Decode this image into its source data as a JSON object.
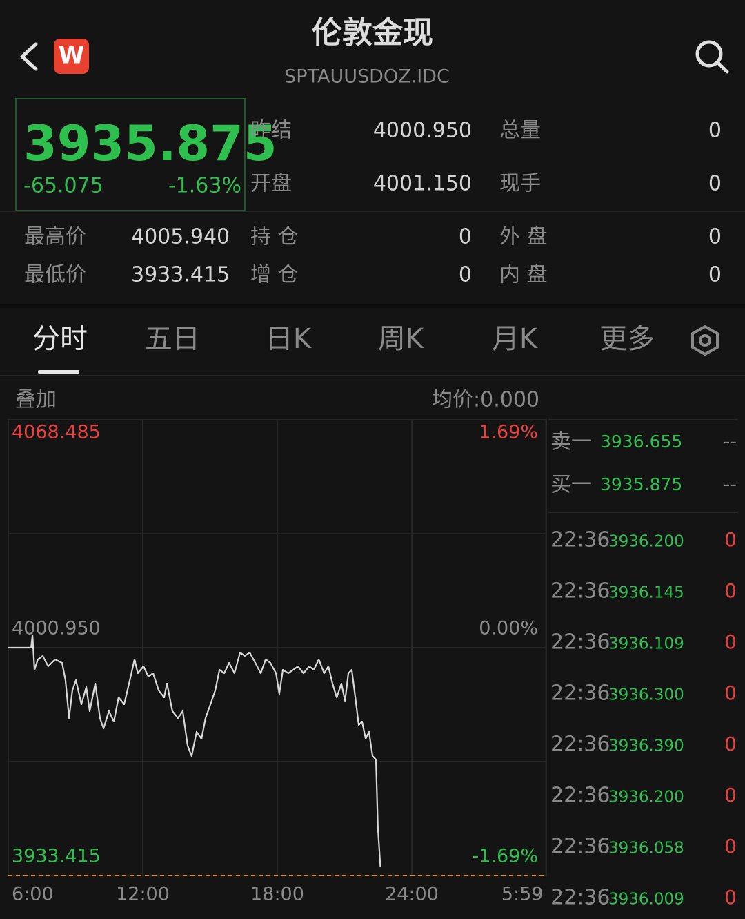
{
  "header": {
    "title": "伦敦金现",
    "subtitle": "SPTAUUSDOZ.IDC",
    "logo": "W"
  },
  "quote": {
    "price": "3935.875",
    "change": "-65.075",
    "change_pct": "-1.63%"
  },
  "stats": [
    {
      "label": "昨结",
      "value": "4000.950"
    },
    {
      "label": "总量",
      "value": "0"
    },
    {
      "label": "开盘",
      "value": "4001.150"
    },
    {
      "label": "现手",
      "value": "0"
    },
    {
      "label": "最高价",
      "value": "4005.940"
    },
    {
      "label": "持 仓",
      "value": "0"
    },
    {
      "label": "外 盘",
      "value": "0"
    },
    {
      "label": "最低价",
      "value": "3933.415"
    },
    {
      "label": "增 仓",
      "value": "0"
    },
    {
      "label": "内 盘",
      "value": "0"
    }
  ],
  "tabs": [
    "分时",
    "五日",
    "日K",
    "周K",
    "月K",
    "更多"
  ],
  "chart_header": {
    "overlay": "叠加",
    "avg_price": "均价:0.000"
  },
  "chart_data": {
    "type": "line",
    "color": "#d8d8d8",
    "x": [
      6.0,
      7.02,
      7.08,
      7.17,
      7.32,
      7.54,
      7.78,
      8.09,
      8.4,
      8.55,
      8.71,
      8.86,
      9.02,
      9.26,
      9.48,
      9.63,
      9.88,
      10.09,
      10.25,
      10.49,
      10.71,
      10.92,
      11.17,
      11.42,
      11.63,
      11.78,
      12.03,
      12.25,
      12.46,
      12.71,
      12.95,
      13.08,
      13.32,
      13.57,
      13.78,
      14.0,
      14.18,
      14.4,
      14.62,
      14.8,
      15.02,
      15.23,
      15.42,
      15.63,
      15.85,
      16.09,
      16.34,
      16.55,
      16.77,
      17.02,
      17.26,
      17.48,
      17.69,
      17.94,
      18.09,
      18.25,
      18.49,
      18.71,
      18.92,
      19.17,
      19.42,
      19.63,
      19.85,
      20.09,
      20.28,
      20.46,
      20.65,
      20.86,
      21.02,
      21.17,
      21.32,
      21.48,
      21.63,
      21.78,
      21.94,
      22.09,
      22.25,
      22.4,
      22.49,
      22.6
    ],
    "values": [
      4000.95,
      4000.95,
      4004.63,
      3994.4,
      3997.47,
      3998.49,
      3995.42,
      3997.47,
      3996.45,
      3991.33,
      3980.08,
      3988.26,
      3991.33,
      3984.17,
      3989.29,
      3982.12,
      3990.31,
      3980.08,
      3977.01,
      3982.12,
      3979.05,
      3986.22,
      3984.17,
      3991.33,
      3997.47,
      3993.38,
      3995.42,
      3992.35,
      3993.38,
      3988.26,
      3986.22,
      3990.31,
      3982.12,
      3980.08,
      3982.12,
      3971.89,
      3968.82,
      3975.98,
      3973.94,
      3980.08,
      3984.17,
      3988.26,
      3994.4,
      3993.38,
      3996.45,
      3993.38,
      3999.52,
      3998.49,
      3999.52,
      3996.45,
      3993.38,
      3997.47,
      3996.45,
      3993.38,
      3987.24,
      3994.4,
      3993.38,
      3994.4,
      3995.42,
      3993.38,
      3995.42,
      3994.4,
      3997.47,
      3993.38,
      3995.42,
      3990.31,
      3986.22,
      3990.31,
      3985.19,
      3993.38,
      3994.4,
      3986.22,
      3978.03,
      3979.05,
      3973.94,
      3975.98,
      3968.82,
      3967.8,
      3947.33,
      3935.875
    ],
    "xlim": [
      6,
      30
    ],
    "xticks": [
      {
        "value": 6,
        "label": "6:00"
      },
      {
        "value": 12,
        "label": "12:00"
      },
      {
        "value": 18,
        "label": "18:00"
      },
      {
        "value": 24,
        "label": "24:00"
      },
      {
        "value": 29.983,
        "label": "5:59"
      }
    ],
    "ylim": [
      3933.415,
      4068.485
    ],
    "yticks": [
      3933.415,
      {
        "value": 4000.95,
        "label": "4000.950"
      },
      4068.485
    ],
    "y2lim": [
      -1.69,
      1.69
    ],
    "y2ticks": [
      {
        "value": -1.69,
        "label": "-1.69%"
      },
      {
        "value": 0,
        "label": "0.00%"
      },
      {
        "value": 1.69,
        "label": "1.69%"
      }
    ],
    "grid": true
  },
  "order_book": [
    {
      "side": "卖一",
      "price": "3936.655",
      "volume": "--"
    },
    {
      "side": "买一",
      "price": "3935.875",
      "volume": "--"
    }
  ],
  "trades": [
    {
      "time": "22:36",
      "price": "3936.200",
      "volume": "0"
    },
    {
      "time": "22:36",
      "price": "3936.145",
      "volume": "0"
    },
    {
      "time": "22:36",
      "price": "3936.109",
      "volume": "0"
    },
    {
      "time": "22:36",
      "price": "3936.300",
      "volume": "0"
    },
    {
      "time": "22:36",
      "price": "3936.390",
      "volume": "0"
    },
    {
      "time": "22:36",
      "price": "3936.200",
      "volume": "0"
    },
    {
      "time": "22:36",
      "price": "3936.058",
      "volume": "0"
    },
    {
      "time": "22:36",
      "price": "3936.009",
      "volume": "0"
    }
  ]
}
